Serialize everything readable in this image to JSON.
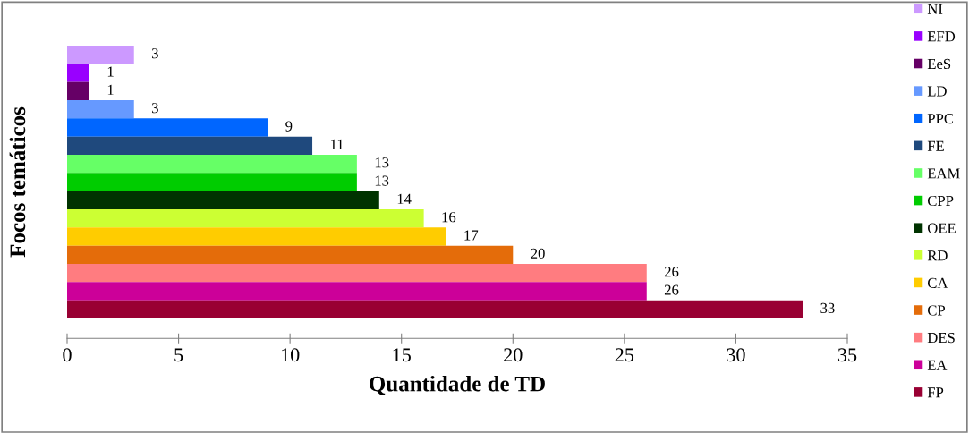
{
  "chart_data": {
    "type": "bar",
    "orientation": "horizontal",
    "xlabel": "Quantidade de TD",
    "ylabel": "Focos temáticos",
    "categories": [
      null
    ],
    "series": [
      {
        "name": "NI",
        "color": "#cc99ff",
        "values": [
          3
        ]
      },
      {
        "name": "EFD",
        "color": "#9900ff",
        "values": [
          1
        ]
      },
      {
        "name": "EeS",
        "color": "#660066",
        "values": [
          1
        ]
      },
      {
        "name": "LD",
        "color": "#6699ff",
        "values": [
          3
        ]
      },
      {
        "name": "PPC",
        "color": "#0066ff",
        "values": [
          9
        ]
      },
      {
        "name": "FE",
        "color": "#1f497d",
        "values": [
          11
        ]
      },
      {
        "name": "EAM",
        "color": "#66ff66",
        "values": [
          13
        ]
      },
      {
        "name": "CPP",
        "color": "#00cc00",
        "values": [
          13
        ]
      },
      {
        "name": "OEE",
        "color": "#003300",
        "values": [
          14
        ]
      },
      {
        "name": "RD",
        "color": "#ccff33",
        "values": [
          16
        ]
      },
      {
        "name": "CA",
        "color": "#ffcc00",
        "values": [
          17
        ]
      },
      {
        "name": "CP",
        "color": "#e46c0a",
        "values": [
          20
        ]
      },
      {
        "name": "DES",
        "color": "#ff7c80",
        "values": [
          26
        ]
      },
      {
        "name": "EA",
        "color": "#cc0099",
        "values": [
          26
        ]
      },
      {
        "name": "FP",
        "color": "#990033",
        "values": [
          33
        ]
      }
    ],
    "xlim": [
      0,
      35
    ],
    "xticks": [
      0,
      5,
      10,
      15,
      20,
      25,
      30,
      35
    ],
    "data_labels": true,
    "legend": "right",
    "tick_labels": "x",
    "grid": false
  }
}
